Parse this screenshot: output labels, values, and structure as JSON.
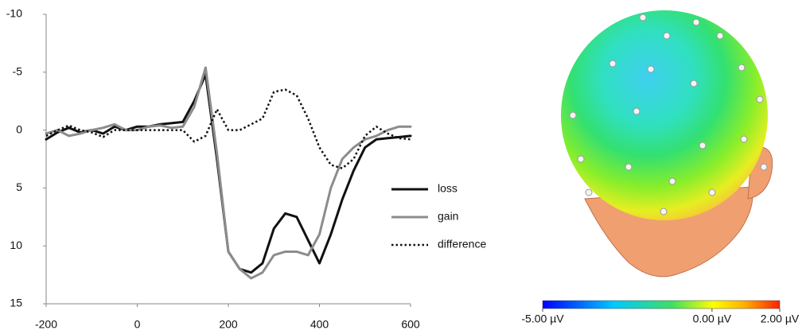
{
  "chart_data": [
    {
      "type": "line",
      "x": [
        -200,
        -175,
        -150,
        -125,
        -100,
        -75,
        -50,
        -25,
        0,
        25,
        50,
        75,
        100,
        125,
        150,
        175,
        200,
        225,
        250,
        275,
        300,
        325,
        350,
        375,
        400,
        425,
        450,
        475,
        500,
        525,
        550,
        575,
        600
      ],
      "series": [
        {
          "name": "loss",
          "color": "#111111",
          "line_style": "solid",
          "values": [
            0.8,
            0.2,
            -0.2,
            0.2,
            0,
            0.3,
            -0.3,
            0,
            -0.3,
            -0.3,
            -0.5,
            -0.6,
            -0.7,
            -2.5,
            -4.8,
            2.5,
            10.5,
            12,
            12.3,
            11.5,
            8.5,
            7.2,
            7.5,
            9.5,
            11.5,
            9,
            6,
            3.5,
            1.5,
            0.8,
            0.7,
            0.6,
            0.5
          ]
        },
        {
          "name": "gain",
          "color": "#8c8c8c",
          "line_style": "solid",
          "values": [
            0.3,
            0,
            0.5,
            0.3,
            0,
            -0.2,
            -0.5,
            0,
            0,
            -0.3,
            -0.4,
            -0.2,
            -0.3,
            -2,
            -5.4,
            2,
            10.5,
            12,
            12.8,
            12.3,
            10.8,
            10.5,
            10.5,
            10.8,
            9,
            5,
            2.5,
            1.5,
            0.8,
            0.5,
            0,
            -0.3,
            -0.3
          ]
        },
        {
          "name": "difference",
          "color": "#111111",
          "line_style": "dotted",
          "values": [
            0.5,
            0,
            -0.4,
            0,
            0.2,
            0.6,
            0,
            0,
            0,
            0,
            0,
            0,
            0,
            1,
            0.5,
            -1.8,
            0,
            0,
            -0.5,
            -1,
            -3.3,
            -3.5,
            -3,
            -1,
            1.5,
            3,
            3.3,
            2.5,
            0.5,
            -0.3,
            0.3,
            0.7,
            0.8
          ]
        }
      ],
      "xlim": [
        -200,
        600
      ],
      "xticks": [
        -200,
        0,
        200,
        400,
        600
      ],
      "ylim": [
        15,
        -10
      ],
      "yticks": [
        -10,
        -5,
        0,
        5,
        10,
        15
      ],
      "grid": false,
      "legend": "right"
    },
    {
      "type": "colorbar",
      "clim": [
        -5,
        2
      ],
      "ticks": [
        {
          "value": -5,
          "label": "-5.00 µV"
        },
        {
          "value": 0,
          "label": "0.00 µV"
        },
        {
          "value": 2,
          "label": "2.00 µV"
        }
      ]
    }
  ]
}
